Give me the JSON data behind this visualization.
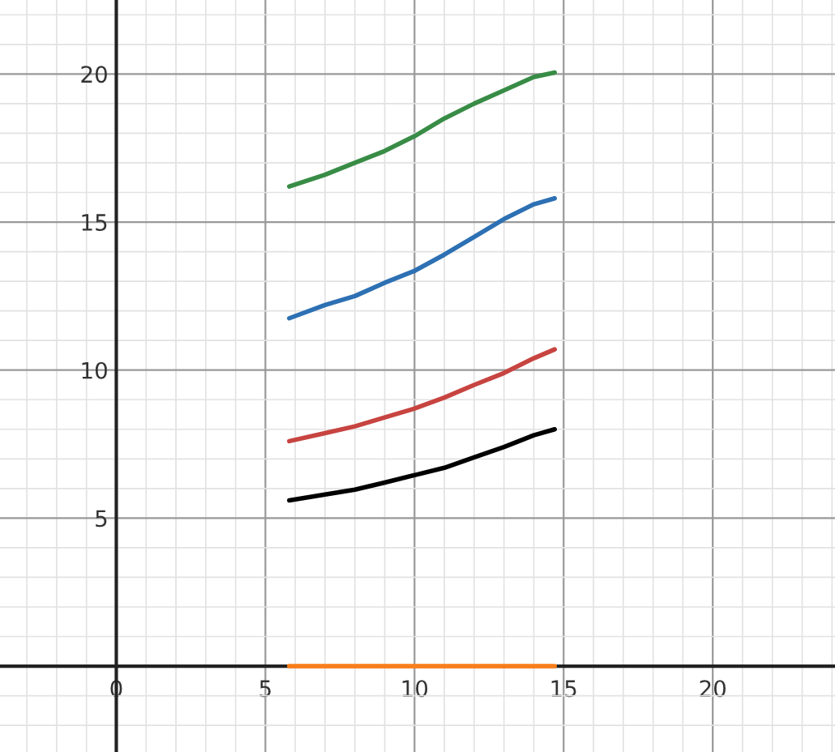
{
  "chart_data": {
    "type": "line",
    "x": [
      5.8,
      7,
      8,
      9,
      10,
      11,
      12,
      13,
      14,
      14.7
    ],
    "series": [
      {
        "color": "#388c46",
        "values": [
          16.2,
          16.6,
          17.0,
          17.4,
          17.9,
          18.5,
          19.0,
          19.45,
          19.9,
          20.05
        ]
      },
      {
        "color": "#2d70b3",
        "values": [
          11.75,
          12.2,
          12.5,
          12.95,
          13.35,
          13.9,
          14.5,
          15.1,
          15.6,
          15.8
        ]
      },
      {
        "color": "#c74440",
        "values": [
          7.6,
          7.87,
          8.1,
          8.4,
          8.7,
          9.07,
          9.5,
          9.9,
          10.4,
          10.7
        ]
      },
      {
        "color": "#000000",
        "values": [
          5.6,
          5.8,
          5.96,
          6.2,
          6.45,
          6.7,
          7.05,
          7.4,
          7.8,
          8.0
        ]
      },
      {
        "color": "#fa7e19",
        "values": [
          0,
          0,
          0,
          0,
          0,
          0,
          0,
          0,
          0,
          0
        ]
      }
    ],
    "xlim": [
      -3.9,
      24.1
    ],
    "ylim": [
      -2.9,
      22.5
    ],
    "xticks": [
      0,
      5,
      10,
      15,
      20
    ],
    "yticks": [
      5,
      10,
      15,
      20
    ],
    "grid": true,
    "marker": "none",
    "line_style": "solid"
  }
}
